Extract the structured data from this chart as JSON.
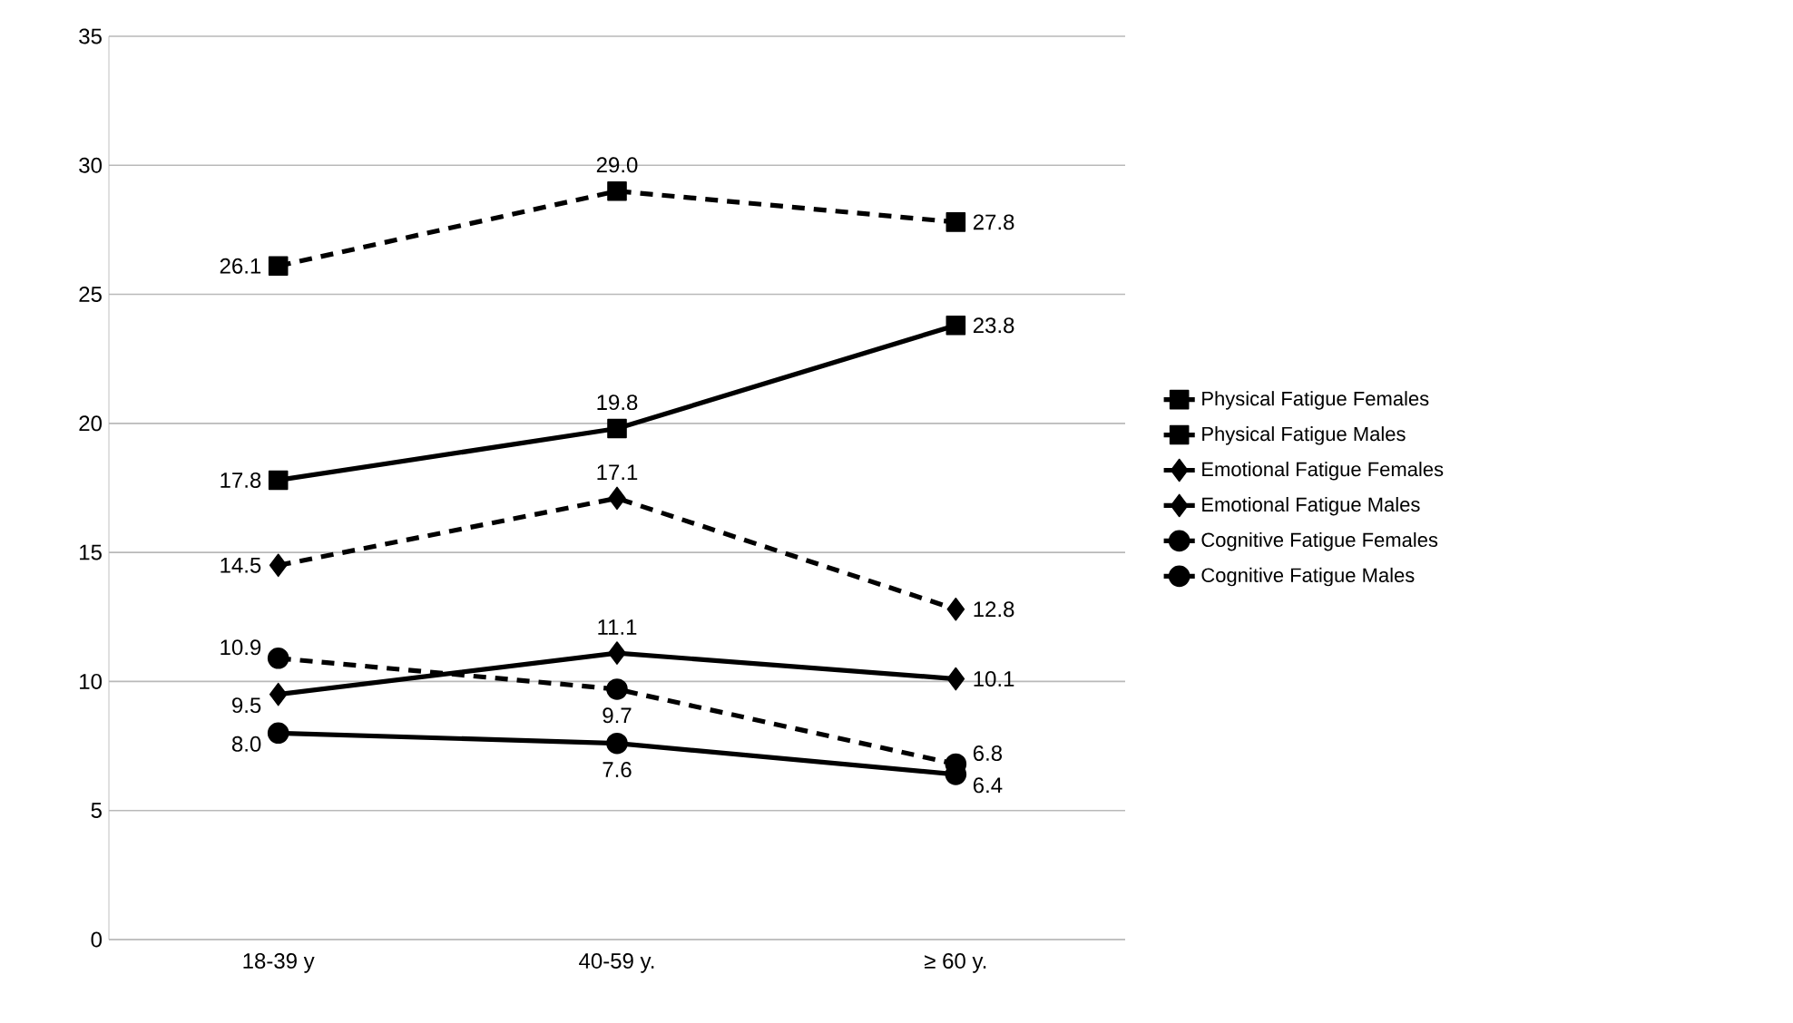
{
  "chart_data": {
    "type": "line",
    "categories": [
      "18-39 y",
      "40-59 y.",
      "≥ 60 y."
    ],
    "series": [
      {
        "name": "Physical Fatigue Females",
        "color": "#000000",
        "marker": "square",
        "line_style": "dashed",
        "values": [
          26.1,
          29.0,
          27.8
        ],
        "value_labels": [
          "26.1",
          "29.0",
          "27.8"
        ]
      },
      {
        "name": "Physical Fatigue Males",
        "color": "#000000",
        "marker": "square",
        "line_style": "solid",
        "values": [
          17.8,
          19.8,
          23.8
        ]
      },
      {
        "name": "Emotional Fatigue Females",
        "color": "#000000",
        "marker": "diamond",
        "line_style": "dashed",
        "values": [
          14.5,
          17.1,
          12.8
        ]
      },
      {
        "name": "Emotional Fatigue Males",
        "color": "#000000",
        "marker": "diamond",
        "line_style": "solid",
        "values": [
          9.5,
          11.1,
          10.1
        ]
      },
      {
        "name": "Cognitive Fatigue Females",
        "color": "#000000",
        "marker": "circle",
        "line_style": "dashed",
        "values": [
          10.9,
          9.7,
          6.8
        ]
      },
      {
        "name": "Cognitive Fatigue Males",
        "color": "#000000",
        "marker": "circle",
        "line_style": "solid",
        "values": [
          8.0,
          7.6,
          6.4
        ],
        "value_labels": [
          "8.0",
          "7.6",
          "6.4"
        ]
      }
    ],
    "ylim": [
      0,
      35
    ],
    "yticks": [
      0,
      5,
      10,
      15,
      20,
      25,
      30,
      35
    ],
    "grid": "y",
    "legend": "right",
    "data_labels": true
  }
}
